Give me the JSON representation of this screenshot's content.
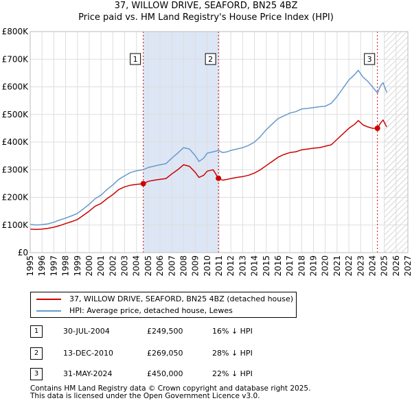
{
  "title": {
    "line1": "37, WILLOW DRIVE, SEAFORD, BN25 4BZ",
    "line2": "Price paid vs. HM Land Registry's House Price Index (HPI)"
  },
  "chart_data": {
    "type": "line",
    "x_range": [
      1995,
      2027
    ],
    "ylim": [
      0,
      800000
    ],
    "y_ticks": [
      0,
      100000,
      200000,
      300000,
      400000,
      500000,
      600000,
      700000,
      800000
    ],
    "y_tick_labels": [
      "£0",
      "£100K",
      "£200K",
      "£300K",
      "£400K",
      "£500K",
      "£600K",
      "£700K",
      "£800K"
    ],
    "x_ticks": [
      1995,
      1996,
      1997,
      1998,
      1999,
      2000,
      2001,
      2002,
      2003,
      2004,
      2005,
      2006,
      2007,
      2008,
      2009,
      2010,
      2011,
      2012,
      2013,
      2014,
      2015,
      2016,
      2017,
      2018,
      2019,
      2020,
      2021,
      2022,
      2023,
      2024,
      2025,
      2026,
      2027
    ],
    "grid": true,
    "shaded_period": [
      2004.58,
      2010.95
    ],
    "projection_start": 2025.0,
    "series": [
      {
        "name": "37, WILLOW DRIVE, SEAFORD, BN25 4BZ (detached house)",
        "color": "#cc0000",
        "x": [
          1995.0,
          1995.5,
          1996.0,
          1996.5,
          1997.0,
          1997.5,
          1998.0,
          1998.5,
          1999.0,
          1999.5,
          2000.0,
          2000.5,
          2001.0,
          2001.5,
          2002.0,
          2002.5,
          2003.0,
          2003.5,
          2004.0,
          2004.58,
          2005.0,
          2005.5,
          2006.0,
          2006.5,
          2007.0,
          2007.5,
          2008.0,
          2008.5,
          2009.0,
          2009.3,
          2009.7,
          2010.0,
          2010.5,
          2010.95,
          2011.3,
          2011.7,
          2012.0,
          2012.5,
          2013.0,
          2013.5,
          2014.0,
          2014.5,
          2015.0,
          2015.5,
          2016.0,
          2016.5,
          2017.0,
          2017.5,
          2018.0,
          2018.5,
          2019.0,
          2019.5,
          2020.0,
          2020.5,
          2021.0,
          2021.5,
          2022.0,
          2022.5,
          2022.8,
          2023.2,
          2023.6,
          2024.0,
          2024.42,
          2024.7,
          2024.9,
          2025.2
        ],
        "y": [
          85000,
          84000,
          85000,
          88000,
          92000,
          98000,
          105000,
          112000,
          120000,
          135000,
          150000,
          168000,
          178000,
          195000,
          210000,
          228000,
          238000,
          244000,
          247000,
          249500,
          258000,
          262000,
          265000,
          268000,
          285000,
          300000,
          318000,
          312000,
          290000,
          272000,
          280000,
          295000,
          300000,
          269050,
          262000,
          265000,
          268000,
          272000,
          275000,
          280000,
          288000,
          300000,
          315000,
          330000,
          345000,
          355000,
          362000,
          365000,
          372000,
          375000,
          378000,
          380000,
          385000,
          390000,
          410000,
          430000,
          450000,
          465000,
          478000,
          462000,
          455000,
          450000,
          450000,
          470000,
          480000,
          455000
        ]
      },
      {
        "name": "HPI: Average price, detached house, Lewes",
        "color": "#6699cc",
        "x": [
          1995.0,
          1995.5,
          1996.0,
          1996.5,
          1997.0,
          1997.5,
          1998.0,
          1998.5,
          1999.0,
          1999.5,
          2000.0,
          2000.5,
          2001.0,
          2001.5,
          2002.0,
          2002.5,
          2003.0,
          2003.5,
          2004.0,
          2004.58,
          2005.0,
          2005.5,
          2006.0,
          2006.5,
          2007.0,
          2007.5,
          2008.0,
          2008.5,
          2009.0,
          2009.3,
          2009.7,
          2010.0,
          2010.5,
          2010.95,
          2011.3,
          2011.7,
          2012.0,
          2012.5,
          2013.0,
          2013.5,
          2014.0,
          2014.5,
          2015.0,
          2015.5,
          2016.0,
          2016.5,
          2017.0,
          2017.5,
          2018.0,
          2018.5,
          2019.0,
          2019.5,
          2020.0,
          2020.5,
          2021.0,
          2021.5,
          2022.0,
          2022.5,
          2022.8,
          2023.2,
          2023.6,
          2024.0,
          2024.42,
          2024.7,
          2024.9,
          2025.2
        ],
        "y": [
          102000,
          100000,
          101000,
          104000,
          110000,
          118000,
          125000,
          133000,
          142000,
          158000,
          175000,
          195000,
          208000,
          228000,
          245000,
          265000,
          278000,
          290000,
          296000,
          300000,
          308000,
          313000,
          318000,
          322000,
          342000,
          360000,
          380000,
          375000,
          350000,
          330000,
          342000,
          360000,
          365000,
          370000,
          362000,
          365000,
          370000,
          375000,
          380000,
          388000,
          400000,
          420000,
          445000,
          465000,
          485000,
          495000,
          505000,
          510000,
          520000,
          522000,
          525000,
          528000,
          530000,
          540000,
          565000,
          595000,
          625000,
          645000,
          660000,
          635000,
          620000,
          600000,
          578000,
          605000,
          615000,
          580000
        ]
      }
    ],
    "sales": [
      {
        "label": "1",
        "x": 2004.58,
        "y": 249500
      },
      {
        "label": "2",
        "x": 2010.95,
        "y": 269050
      },
      {
        "label": "3",
        "x": 2024.42,
        "y": 450000
      }
    ]
  },
  "legend": {
    "red_label": "37, WILLOW DRIVE, SEAFORD, BN25 4BZ (detached house)",
    "blue_label": "HPI: Average price, detached house, Lewes"
  },
  "transactions": [
    {
      "num": "1",
      "date": "30-JUL-2004",
      "price": "£249,500",
      "hpi": "16% ↓ HPI"
    },
    {
      "num": "2",
      "date": "13-DEC-2010",
      "price": "£269,050",
      "hpi": "28% ↓ HPI"
    },
    {
      "num": "3",
      "date": "31-MAY-2024",
      "price": "£450,000",
      "hpi": "22% ↓ HPI"
    }
  ],
  "footer": {
    "line1": "Contains HM Land Registry data © Crown copyright and database right 2025.",
    "line2": "This data is licensed under the Open Government Licence v3.0."
  }
}
